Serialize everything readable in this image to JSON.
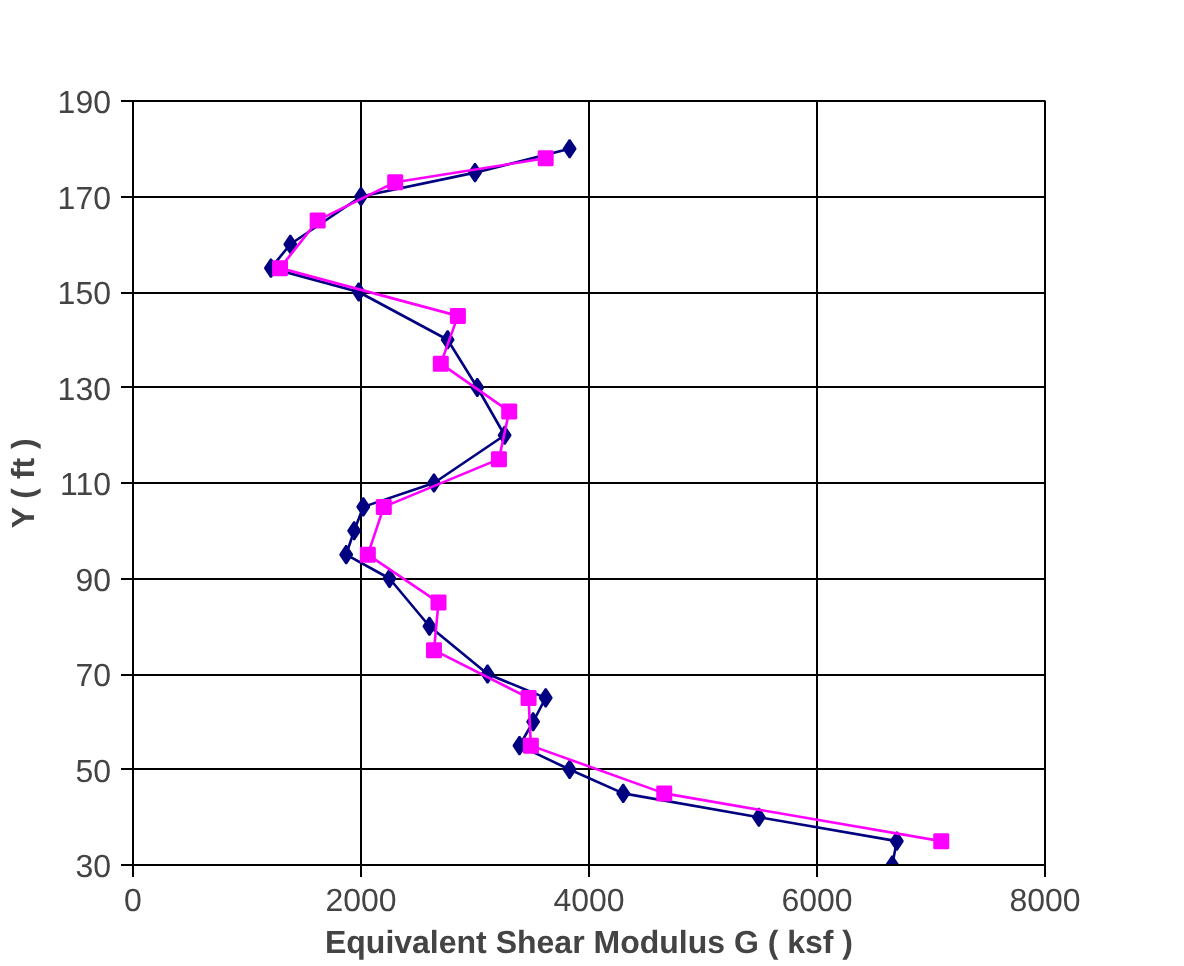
{
  "chart_data": {
    "type": "line",
    "xlabel": "Equivalent Shear Modulus G ( ksf )",
    "ylabel": "Y ( ft )",
    "xlim": [
      0,
      8000
    ],
    "xticks": [
      0,
      2000,
      4000,
      6000,
      8000
    ],
    "ylim": [
      30,
      190
    ],
    "yticks": [
      30,
      50,
      70,
      90,
      110,
      130,
      150,
      170,
      190
    ],
    "grid": true,
    "series": [
      {
        "color": "#000080",
        "marker": "diamond",
        "x": [
          3830,
          3000,
          2000,
          1380,
          1210,
          1980,
          2760,
          3020,
          3260,
          2640,
          2020,
          1940,
          1870,
          2250,
          2600,
          3110,
          3620,
          3510,
          3390,
          3830,
          4300,
          5490,
          6700,
          6660
        ],
        "values": [
          180,
          175,
          170,
          160,
          155,
          150,
          140,
          130,
          120,
          110,
          105,
          100,
          95,
          90,
          80,
          70,
          65,
          60,
          55,
          50,
          45,
          40,
          35,
          30
        ]
      },
      {
        "color": "#ff00ff",
        "marker": "square",
        "x": [
          3620,
          2300,
          1620,
          1290,
          2850,
          2700,
          3300,
          3210,
          2200,
          2060,
          2680,
          2640,
          3470,
          3490,
          4660,
          7090
        ],
        "values": [
          178,
          173,
          165,
          155,
          145,
          135,
          125,
          115,
          105,
          95,
          85,
          75,
          65,
          55,
          45,
          35
        ]
      }
    ]
  }
}
